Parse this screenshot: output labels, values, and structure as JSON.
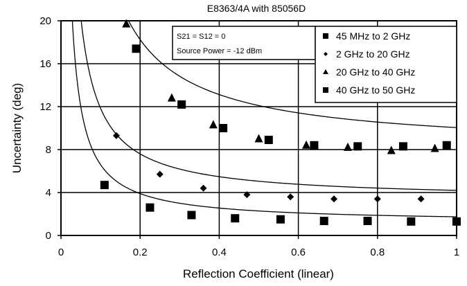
{
  "chart_data": {
    "type": "scatter",
    "title": "E8363/4A with 85056D",
    "xlabel": "Reflection Coefficient (linear)",
    "ylabel": "Uncertainty (deg)",
    "xlim": [
      0,
      1
    ],
    "ylim": [
      0,
      20
    ],
    "xticks": [
      "0",
      "0.2",
      "0.4",
      "0.6",
      "0.8",
      "1"
    ],
    "yticks": [
      "0",
      "4",
      "8",
      "12",
      "16",
      "20"
    ],
    "grid": true,
    "legend_position": "top-right",
    "annotation": {
      "line1": "S21 = S12 = 0",
      "line2": "Source Power = -12 dBm"
    },
    "series": [
      {
        "name": "45 MHz to 2 GHz",
        "marker": "square",
        "x": [
          0.11,
          0.225,
          0.33,
          0.44,
          0.555,
          0.665,
          0.775,
          0.885,
          1.0
        ],
        "y": [
          4.7,
          2.6,
          1.9,
          1.6,
          1.5,
          1.35,
          1.35,
          1.3,
          1.3
        ]
      },
      {
        "name": "2 GHz to 20 GHz",
        "marker": "diamond",
        "x": [
          0.14,
          0.25,
          0.36,
          0.47,
          0.58,
          0.69,
          0.8,
          0.91
        ],
        "y": [
          9.3,
          5.7,
          4.4,
          3.8,
          3.6,
          3.4,
          3.4,
          3.4
        ]
      },
      {
        "name": "20 GHz to 40 GHz",
        "marker": "triangle",
        "x": [
          0.165,
          0.28,
          0.385,
          0.5,
          0.62,
          0.725,
          0.835,
          0.945
        ],
        "y": [
          19.7,
          12.8,
          10.3,
          9.0,
          8.4,
          8.2,
          7.9,
          8.1
        ]
      },
      {
        "name": "40 GHz to 50 GHz",
        "marker": "square",
        "x": [
          0.19,
          0.305,
          0.41,
          0.525,
          0.64,
          0.75,
          0.865,
          0.975
        ],
        "y": [
          17.4,
          12.2,
          10.0,
          8.9,
          8.4,
          8.3,
          8.3,
          8.4
        ]
      }
    ],
    "fit_curves": [
      {
        "a": 0.54,
        "b": 1.2
      },
      {
        "a": 0.85,
        "b": 3.35
      },
      {
        "a": 2.05,
        "b": 8.0
      }
    ]
  }
}
